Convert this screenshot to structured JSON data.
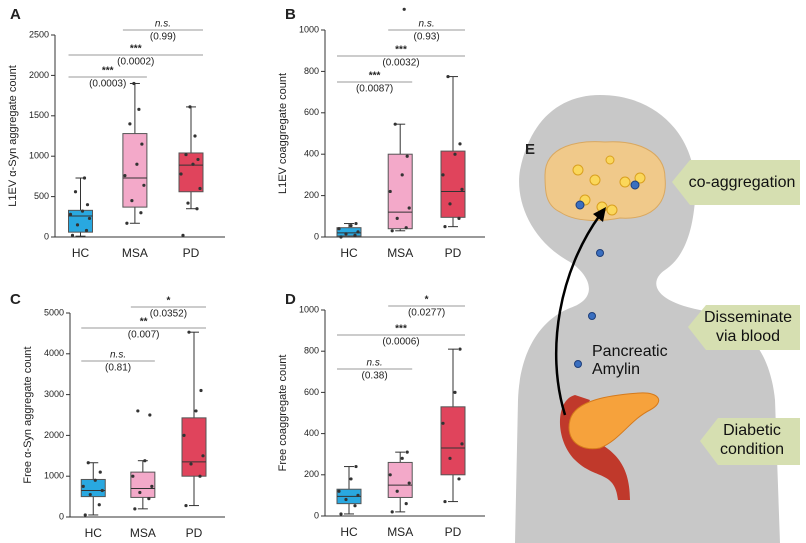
{
  "chart_data": [
    {
      "type": "box",
      "panel": "A",
      "ylabel": "L1EV α-Syn aggregate count",
      "categories": [
        "HC",
        "MSA",
        "PD"
      ],
      "colors": [
        "#29a8e0",
        "#f3a9c9",
        "#e0445c"
      ],
      "ylim": [
        0,
        2500
      ],
      "yticks": [
        0,
        500,
        1000,
        1500,
        2000,
        2500
      ],
      "boxes": [
        {
          "min": 10,
          "q1": 60,
          "median": 260,
          "q3": 330,
          "max": 730,
          "points": [
            20,
            80,
            150,
            230,
            280,
            320,
            400,
            560,
            730
          ]
        },
        {
          "min": 170,
          "q1": 370,
          "median": 730,
          "q3": 1280,
          "max": 1900,
          "points": [
            170,
            300,
            450,
            640,
            760,
            900,
            1150,
            1400,
            1580,
            1900
          ]
        },
        {
          "min": 350,
          "q1": 560,
          "median": 890,
          "q3": 1040,
          "max": 1610,
          "points": [
            20,
            350,
            420,
            600,
            780,
            900,
            960,
            1020,
            1250,
            1610
          ]
        }
      ],
      "annotations": [
        {
          "label": "***",
          "p": "(0.0003)"
        },
        {
          "label": "***",
          "p": "(0.0002)"
        },
        {
          "label": "n.s.",
          "p": "(0.99)"
        }
      ]
    },
    {
      "type": "box",
      "panel": "B",
      "ylabel": "L1EV coaggregate count",
      "categories": [
        "HC",
        "MSA",
        "PD"
      ],
      "colors": [
        "#29a8e0",
        "#f3a9c9",
        "#e0445c"
      ],
      "ylim": [
        0,
        1000
      ],
      "yticks": [
        0,
        200,
        400,
        600,
        800,
        1000
      ],
      "boxes": [
        {
          "min": 0,
          "q1": 5,
          "median": 20,
          "q3": 45,
          "max": 65,
          "points": [
            0,
            8,
            15,
            25,
            40,
            55,
            65
          ]
        },
        {
          "min": 30,
          "q1": 40,
          "median": 120,
          "q3": 400,
          "max": 545,
          "points": [
            30,
            45,
            90,
            140,
            220,
            300,
            390,
            545,
            1100
          ]
        },
        {
          "min": 50,
          "q1": 95,
          "median": 220,
          "q3": 415,
          "max": 775,
          "points": [
            50,
            90,
            160,
            230,
            300,
            400,
            450,
            775
          ]
        }
      ],
      "annotations": [
        {
          "label": "***",
          "p": "(0.0087)"
        },
        {
          "label": "***",
          "p": "(0.0032)"
        },
        {
          "label": "n.s.",
          "p": "(0.93)"
        }
      ]
    },
    {
      "type": "box",
      "panel": "C",
      "ylabel": "Free α-Syn aggregate count",
      "categories": [
        "HC",
        "MSA",
        "PD"
      ],
      "colors": [
        "#29a8e0",
        "#f3a9c9",
        "#e0445c"
      ],
      "ylim": [
        0,
        5000
      ],
      "yticks": [
        0,
        1000,
        2000,
        3000,
        4000,
        5000
      ],
      "boxes": [
        {
          "min": 50,
          "q1": 500,
          "median": 650,
          "q3": 920,
          "max": 1330,
          "points": [
            50,
            300,
            550,
            650,
            750,
            900,
            1100,
            1330
          ]
        },
        {
          "min": 200,
          "q1": 480,
          "median": 700,
          "q3": 1100,
          "max": 1380,
          "points": [
            200,
            450,
            600,
            750,
            1000,
            1380,
            2500,
            2600
          ]
        },
        {
          "min": 280,
          "q1": 1000,
          "median": 1350,
          "q3": 2430,
          "max": 4530,
          "points": [
            280,
            1000,
            1300,
            1500,
            2000,
            2600,
            3100,
            4530
          ]
        }
      ],
      "annotations": [
        {
          "label": "n.s.",
          "p": "(0.81)"
        },
        {
          "label": "**",
          "p": "(0.007)"
        },
        {
          "label": "*",
          "p": "(0.0352)"
        }
      ]
    },
    {
      "type": "box",
      "panel": "D",
      "ylabel": "Free coaggregate count",
      "categories": [
        "HC",
        "MSA",
        "PD"
      ],
      "colors": [
        "#29a8e0",
        "#f3a9c9",
        "#e0445c"
      ],
      "ylim": [
        0,
        1000
      ],
      "yticks": [
        0,
        200,
        400,
        600,
        800,
        1000
      ],
      "boxes": [
        {
          "min": 10,
          "q1": 60,
          "median": 95,
          "q3": 130,
          "max": 240,
          "points": [
            10,
            50,
            80,
            100,
            120,
            180,
            240
          ]
        },
        {
          "min": 20,
          "q1": 90,
          "median": 150,
          "q3": 260,
          "max": 310,
          "points": [
            20,
            60,
            120,
            160,
            200,
            280,
            310
          ]
        },
        {
          "min": 70,
          "q1": 200,
          "median": 330,
          "q3": 530,
          "max": 810,
          "points": [
            70,
            180,
            280,
            350,
            450,
            600,
            810
          ]
        }
      ],
      "annotations": [
        {
          "label": "n.s.",
          "p": "(0.38)"
        },
        {
          "label": "***",
          "p": "(0.0006)"
        },
        {
          "label": "*",
          "p": "(0.0277)"
        }
      ]
    }
  ],
  "illustration": {
    "panel": "E",
    "labels": [
      [
        "co-aggregation"
      ],
      [
        "Disseminate",
        "via blood"
      ],
      [
        "Diabetic",
        "condition"
      ]
    ],
    "organ": [
      "Pancreatic",
      "Amylin"
    ]
  }
}
